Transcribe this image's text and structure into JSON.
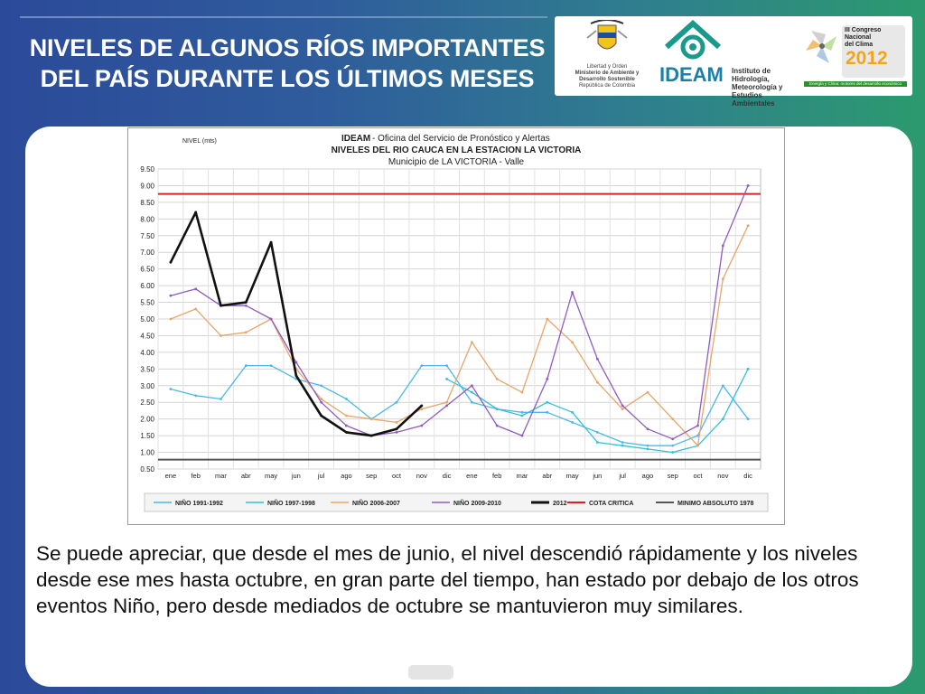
{
  "slide": {
    "title_line1": "NIVELES DE ALGUNOS RÍOS IMPORTANTES",
    "title_line2": "DEL PAÍS DURANTE LOS ÚLTIMOS MESES",
    "body": "Se puede apreciar, que desde el mes de junio, el nivel descendió rápidamente y los niveles desde ese mes hasta octubre, en gran parte del tiempo, han estado por debajo de los otros eventos Niño, pero desde mediados de octubre se mantuvieron muy similares."
  },
  "logos": {
    "ministry": [
      "Libertad y Orden",
      "Ministerio de Ambiente y",
      "Desarrollo Sostenible",
      "República de Colombia"
    ],
    "ideam_name": "IDEAM",
    "ideam_sub": [
      "Instituto de Hidrología,",
      "Meteorología y",
      "Estudios Ambientales"
    ],
    "congress": [
      "III Congreso",
      "Nacional",
      "del Clima",
      "2012"
    ],
    "congress_tag": "Energía y Clima: motores del desarrollo económico"
  },
  "colors": {
    "nino_1991": "#4db8e8",
    "nino_1997": "#33c0d8",
    "nino_2006": "#e8a56a",
    "nino_2009": "#8f5bbd",
    "y2012": "#111111",
    "cota": "#e02020",
    "minimo": "#555555",
    "green": "#2fa84a"
  },
  "chart_data": {
    "type": "line",
    "title_org": "IDEAM",
    "title_office": "- Oficina del Servicio de Pronóstico y Alertas",
    "title": "NIVELES DEL RIO CAUCA EN LA ESTACION LA VICTORIA",
    "subtitle": "Municipio de LA VICTORIA - Valle",
    "ylabel": "NIVEL (mts)",
    "ylim": [
      0.5,
      9.5
    ],
    "yticks": [
      "0.50",
      "1.00",
      "1.50",
      "2.00",
      "2.50",
      "3.00",
      "3.50",
      "4.00",
      "4.50",
      "5.00",
      "5.50",
      "6.00",
      "6.50",
      "7.00",
      "7.50",
      "8.00",
      "8.50",
      "9.00",
      "9.50"
    ],
    "categories": [
      "ene",
      "feb",
      "mar",
      "abr",
      "may",
      "jun",
      "jul",
      "ago",
      "sep",
      "oct",
      "nov",
      "dic",
      "ene",
      "feb",
      "mar",
      "abr",
      "may",
      "jun",
      "jul",
      "ago",
      "sep",
      "oct",
      "nov",
      "dic"
    ],
    "reference_lines": [
      {
        "name": "COTA CRITICA",
        "value": 8.75
      },
      {
        "name": "MINIMO ABSOLUTO 1978",
        "value": 0.78
      }
    ],
    "series": [
      {
        "name": "NIÑO 1991-1992",
        "key": "nino_1991",
        "values": [
          2.9,
          2.7,
          2.6,
          3.6,
          3.6,
          3.2,
          3.0,
          2.6,
          2.0,
          2.5,
          3.6,
          3.6,
          2.5,
          2.3,
          2.2,
          2.2,
          1.9,
          1.6,
          1.3,
          1.2,
          1.2,
          1.5,
          3.0,
          2.0
        ]
      },
      {
        "name": "NIÑO 1997-1998",
        "key": "nino_1997",
        "values": [
          null,
          null,
          null,
          null,
          null,
          null,
          null,
          null,
          null,
          null,
          null,
          3.2,
          2.8,
          2.3,
          2.1,
          2.5,
          2.2,
          1.3,
          1.2,
          1.1,
          1.0,
          1.2,
          2.0,
          3.5
        ]
      },
      {
        "name": "NIÑO 2006-2007",
        "key": "nino_2006",
        "values": [
          5.0,
          5.3,
          4.5,
          4.6,
          5.0,
          3.5,
          2.6,
          2.1,
          2.0,
          1.9,
          2.3,
          2.5,
          4.3,
          3.2,
          2.8,
          5.0,
          4.3,
          3.1,
          2.3,
          2.8,
          2.0,
          1.2,
          6.2,
          7.8
        ]
      },
      {
        "name": "NIÑO 2009-2010",
        "key": "nino_2009",
        "values": [
          5.7,
          5.9,
          5.4,
          5.4,
          5.0,
          3.7,
          2.5,
          1.8,
          1.5,
          1.6,
          1.8,
          2.4,
          3.0,
          1.8,
          1.5,
          3.2,
          5.8,
          3.8,
          2.4,
          1.7,
          1.4,
          1.8,
          7.2,
          9.0
        ]
      },
      {
        "name": "2012",
        "key": "y2012",
        "values": [
          6.7,
          8.2,
          5.4,
          5.5,
          7.3,
          3.3,
          2.1,
          1.6,
          1.5,
          1.7,
          2.4,
          null,
          null,
          null,
          null,
          null,
          null,
          null,
          null,
          null,
          null,
          null,
          null,
          null
        ]
      }
    ]
  }
}
